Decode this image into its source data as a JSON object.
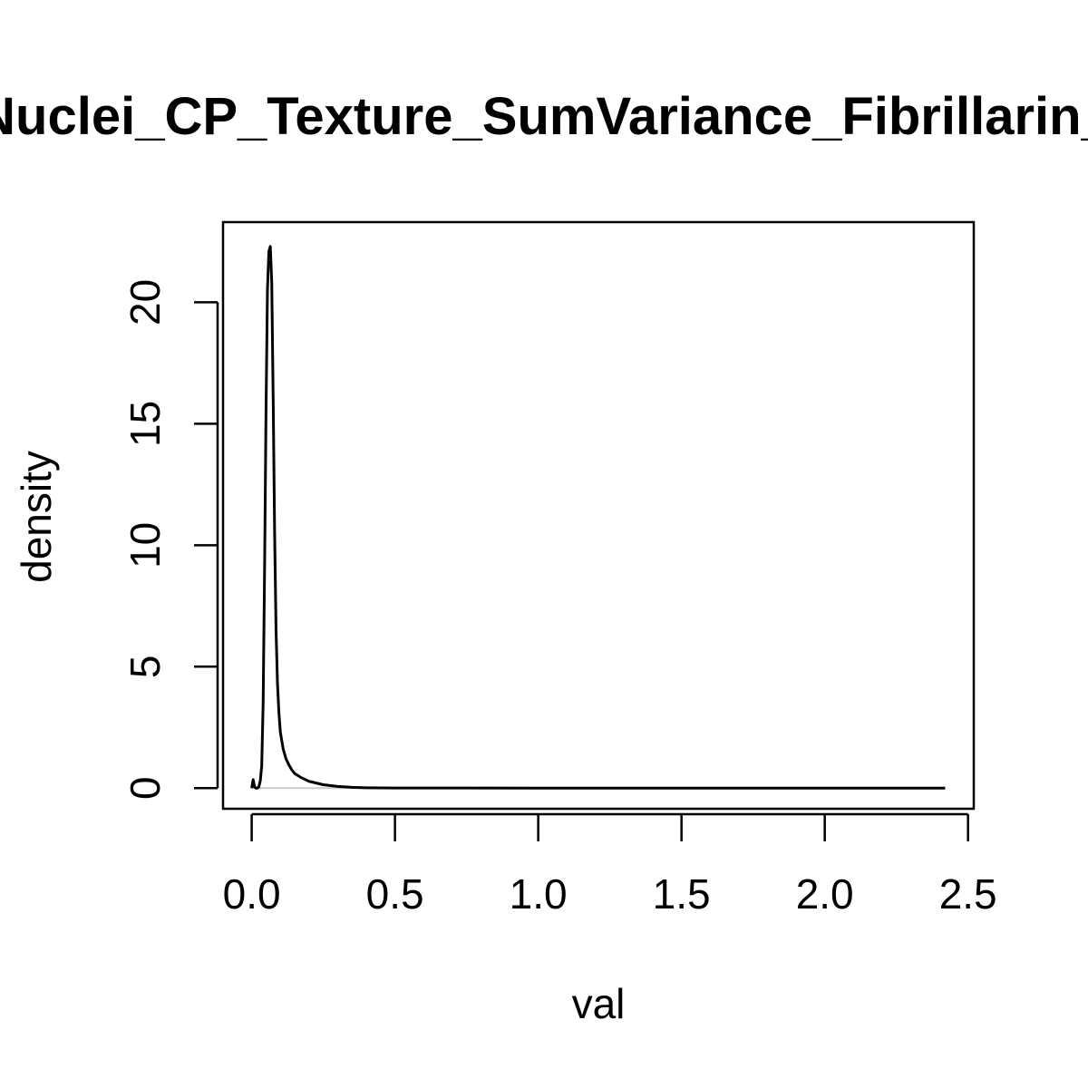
{
  "chart_data": {
    "type": "line",
    "title": "Nuclei_CP_Texture_SumVariance_Fibrillarin_",
    "xlabel": "val",
    "ylabel": "density",
    "xlim": [
      -0.1,
      2.52
    ],
    "ylim": [
      -0.85,
      23.3
    ],
    "x_ticks": [
      0.0,
      0.5,
      1.0,
      1.5,
      2.0,
      2.5
    ],
    "x_tick_labels": [
      "0.0",
      "0.5",
      "1.0",
      "1.5",
      "2.0",
      "2.5"
    ],
    "y_ticks": [
      0,
      5,
      10,
      15,
      20
    ],
    "y_tick_labels": [
      "0",
      "5",
      "10",
      "15",
      "20"
    ],
    "zero_line": true,
    "grid": false,
    "legend": "none",
    "series": [
      {
        "x": [
          0.0,
          0.005,
          0.01,
          0.015,
          0.02,
          0.025,
          0.03,
          0.035,
          0.04,
          0.045,
          0.05,
          0.055,
          0.06,
          0.065,
          0.07,
          0.075,
          0.08,
          0.085,
          0.09,
          0.095,
          0.1,
          0.11,
          0.12,
          0.13,
          0.14,
          0.15,
          0.17,
          0.2,
          0.25,
          0.3,
          0.35,
          0.4,
          0.5,
          0.7,
          1.0,
          1.5,
          2.0,
          2.42
        ],
        "y": [
          0.0,
          0.35,
          0.05,
          0.0,
          0.0,
          0.05,
          0.3,
          0.9,
          3.5,
          9.0,
          15.5,
          20.5,
          22.1,
          22.3,
          20.8,
          16.0,
          10.5,
          6.5,
          4.3,
          3.1,
          2.3,
          1.6,
          1.2,
          0.95,
          0.75,
          0.6,
          0.45,
          0.28,
          0.14,
          0.07,
          0.03,
          0.015,
          0.006,
          0.002,
          0.001,
          0.0005,
          0.0002,
          0.0
        ]
      }
    ]
  },
  "colors": {
    "line": "#000000",
    "zero_line": "#cccccc",
    "axes": "#000000",
    "background": "#ffffff"
  }
}
